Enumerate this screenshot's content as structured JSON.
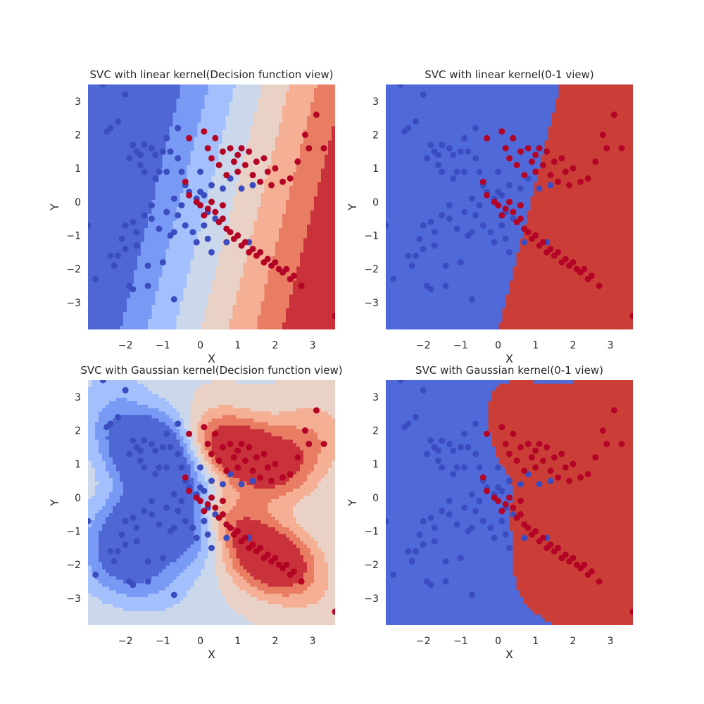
{
  "chart_data": [
    {
      "type": "scatter",
      "title": "SVC with linear kernel(Decision function view)",
      "xlabel": "X",
      "ylabel": "Y",
      "xlim": [
        -3,
        3.6
      ],
      "ylim": [
        -3.8,
        3.5
      ],
      "xticks": [
        -2,
        -1,
        0,
        1,
        2,
        3
      ],
      "yticks": [
        -3,
        -2,
        -1,
        0,
        1,
        2,
        3
      ],
      "background": "filled decision-function contours, coolwarm colormap",
      "kernel": "linear",
      "view": "decision"
    },
    {
      "type": "scatter",
      "title": "SVC with linear kernel(0-1 view)",
      "xlabel": "X",
      "ylabel": "Y",
      "xlim": [
        -3,
        3.6
      ],
      "ylim": [
        -3.8,
        3.5
      ],
      "xticks": [
        -2,
        -1,
        0,
        1,
        2,
        3
      ],
      "yticks": [
        -3,
        -2,
        -1,
        0,
        1,
        2,
        3
      ],
      "background": "two-class decision regions",
      "kernel": "linear",
      "view": "binary"
    },
    {
      "type": "scatter",
      "title": "SVC with Gaussian kernel(Decision function view)",
      "xlabel": "X",
      "ylabel": "Y",
      "xlim": [
        -3,
        3.6
      ],
      "ylim": [
        -3.8,
        3.5
      ],
      "xticks": [
        -2,
        -1,
        0,
        1,
        2,
        3
      ],
      "yticks": [
        -3,
        -2,
        -1,
        0,
        1,
        2,
        3
      ],
      "background": "filled decision-function contours, coolwarm colormap",
      "kernel": "gaussian",
      "view": "decision"
    },
    {
      "type": "scatter",
      "title": "SVC with Gaussian kernel(0-1 view)",
      "xlabel": "X",
      "ylabel": "Y",
      "xlim": [
        -3,
        3.6
      ],
      "ylim": [
        -3.8,
        3.5
      ],
      "xticks": [
        -2,
        -1,
        0,
        1,
        2,
        3
      ],
      "yticks": [
        -3,
        -2,
        -1,
        0,
        1,
        2,
        3
      ],
      "background": "two-class decision regions",
      "kernel": "gaussian",
      "view": "binary"
    }
  ],
  "points": {
    "class0_color": "#3b4cc0",
    "class1_color": "#b40426",
    "class0": [
      [
        -3,
        -0.7
      ],
      [
        -2.8,
        -2.3
      ],
      [
        -2.6,
        3.5
      ],
      [
        -2.5,
        2.1
      ],
      [
        -2.4,
        -1.6
      ],
      [
        -2.3,
        -1.9
      ],
      [
        -2.2,
        -1.6
      ],
      [
        -2.2,
        2.4
      ],
      [
        -2.1,
        -1.1
      ],
      [
        -2,
        -0.7
      ],
      [
        -2,
        -1.4
      ],
      [
        -1.9,
        1.3
      ],
      [
        -1.8,
        -0.6
      ],
      [
        -1.8,
        -2.6
      ],
      [
        -1.7,
        -1.3
      ],
      [
        -1.7,
        -0.9
      ],
      [
        -1.7,
        1.5
      ],
      [
        -1.6,
        1.4
      ],
      [
        -1.6,
        1.1
      ],
      [
        -1.5,
        0.9
      ],
      [
        -1.5,
        -0.4
      ],
      [
        -1.5,
        1.7
      ],
      [
        -1.4,
        -1.9
      ],
      [
        -1.4,
        -2.5
      ],
      [
        -1.3,
        -0.5
      ],
      [
        -1.3,
        -0.1
      ],
      [
        -1.3,
        1.6
      ],
      [
        -1.2,
        0.7
      ],
      [
        -1.2,
        1.4
      ],
      [
        -1.1,
        0.9
      ],
      [
        -1.1,
        -0.8
      ],
      [
        -1,
        -1.8
      ],
      [
        -1,
        1.5
      ],
      [
        -0.9,
        0.9
      ],
      [
        -0.9,
        -0.3
      ],
      [
        -0.9,
        1.9
      ],
      [
        -0.8,
        1.5
      ],
      [
        -0.8,
        -1
      ],
      [
        -0.7,
        0.1
      ],
      [
        -0.7,
        -0.9
      ],
      [
        -0.7,
        -2.9
      ],
      [
        -0.6,
        1.3
      ],
      [
        -0.6,
        -0.4
      ],
      [
        -0.5,
        0.9
      ],
      [
        -0.5,
        -0.1
      ],
      [
        -0.4,
        -0.7
      ],
      [
        -0.4,
        0.5
      ],
      [
        -0.3,
        0.3
      ],
      [
        -0.2,
        -0.9
      ],
      [
        -0.1,
        -1.2
      ],
      [
        -0.1,
        0.1
      ],
      [
        0,
        0.3
      ],
      [
        0,
        0.9
      ],
      [
        0.1,
        -0.7
      ],
      [
        0.1,
        0.2
      ],
      [
        0.2,
        -1.1
      ],
      [
        0.2,
        -0.3
      ],
      [
        0.3,
        0.5
      ],
      [
        0.3,
        -1.5
      ],
      [
        0.4,
        -0.5
      ],
      [
        0.6,
        0.4
      ],
      [
        0.7,
        -1.2
      ],
      [
        0.8,
        0.7
      ],
      [
        1.1,
        0.4
      ],
      [
        1.3,
        -1.2
      ],
      [
        1.4,
        0.5
      ],
      [
        -2.4,
        2.2
      ],
      [
        -1.8,
        1.7
      ],
      [
        -0.6,
        2.2
      ],
      [
        -2.0,
        3.2
      ],
      [
        -1.9,
        -2.5
      ]
    ],
    "class1": [
      [
        0.1,
        2.1
      ],
      [
        0.2,
        1.6
      ],
      [
        0.3,
        1.3
      ],
      [
        0.4,
        1.9
      ],
      [
        0.5,
        1.1
      ],
      [
        0.6,
        1.5
      ],
      [
        0.7,
        0.8
      ],
      [
        0.8,
        1.6
      ],
      [
        0.9,
        1.2
      ],
      [
        1,
        1.4
      ],
      [
        1,
        0.9
      ],
      [
        1.1,
        1.6
      ],
      [
        1.2,
        1.1
      ],
      [
        1.3,
        1.5
      ],
      [
        1.4,
        0.8
      ],
      [
        1.5,
        1.2
      ],
      [
        1.6,
        0.6
      ],
      [
        1.7,
        1.3
      ],
      [
        1.8,
        0.9
      ],
      [
        1.9,
        0.5
      ],
      [
        2,
        1
      ],
      [
        2.2,
        0.6
      ],
      [
        2.4,
        0.7
      ],
      [
        2.6,
        1.2
      ],
      [
        2.8,
        2
      ],
      [
        2.9,
        1.6
      ],
      [
        3.1,
        2.6
      ],
      [
        3.3,
        1.6
      ],
      [
        3.6,
        -3.4
      ],
      [
        -0.3,
        1.9
      ],
      [
        -0.4,
        0.6
      ],
      [
        -0.3,
        0.2
      ],
      [
        -0.1,
        0
      ],
      [
        0,
        -0.1
      ],
      [
        0.1,
        -0.4
      ],
      [
        0.2,
        -0.2
      ],
      [
        0.4,
        -0.3
      ],
      [
        0.5,
        -0.6
      ],
      [
        0.6,
        -0.5
      ],
      [
        0.7,
        -0.8
      ],
      [
        0.8,
        -0.9
      ],
      [
        0.9,
        -1.1
      ],
      [
        1.0,
        -1.0
      ],
      [
        1.1,
        -1.3
      ],
      [
        1.2,
        -1.2
      ],
      [
        1.3,
        -1.5
      ],
      [
        1.4,
        -1.4
      ],
      [
        1.5,
        -1.6
      ],
      [
        1.6,
        -1.5
      ],
      [
        1.7,
        -1.8
      ],
      [
        1.8,
        -1.7
      ],
      [
        1.9,
        -1.9
      ],
      [
        2.0,
        -1.8
      ],
      [
        2.1,
        -2.0
      ],
      [
        2.2,
        -2.1
      ],
      [
        2.3,
        -2.0
      ],
      [
        2.4,
        -2.3
      ],
      [
        2.5,
        -2.2
      ],
      [
        2.7,
        -2.5
      ],
      [
        0.3,
        0.0
      ],
      [
        0.6,
        -0.1
      ]
    ]
  }
}
